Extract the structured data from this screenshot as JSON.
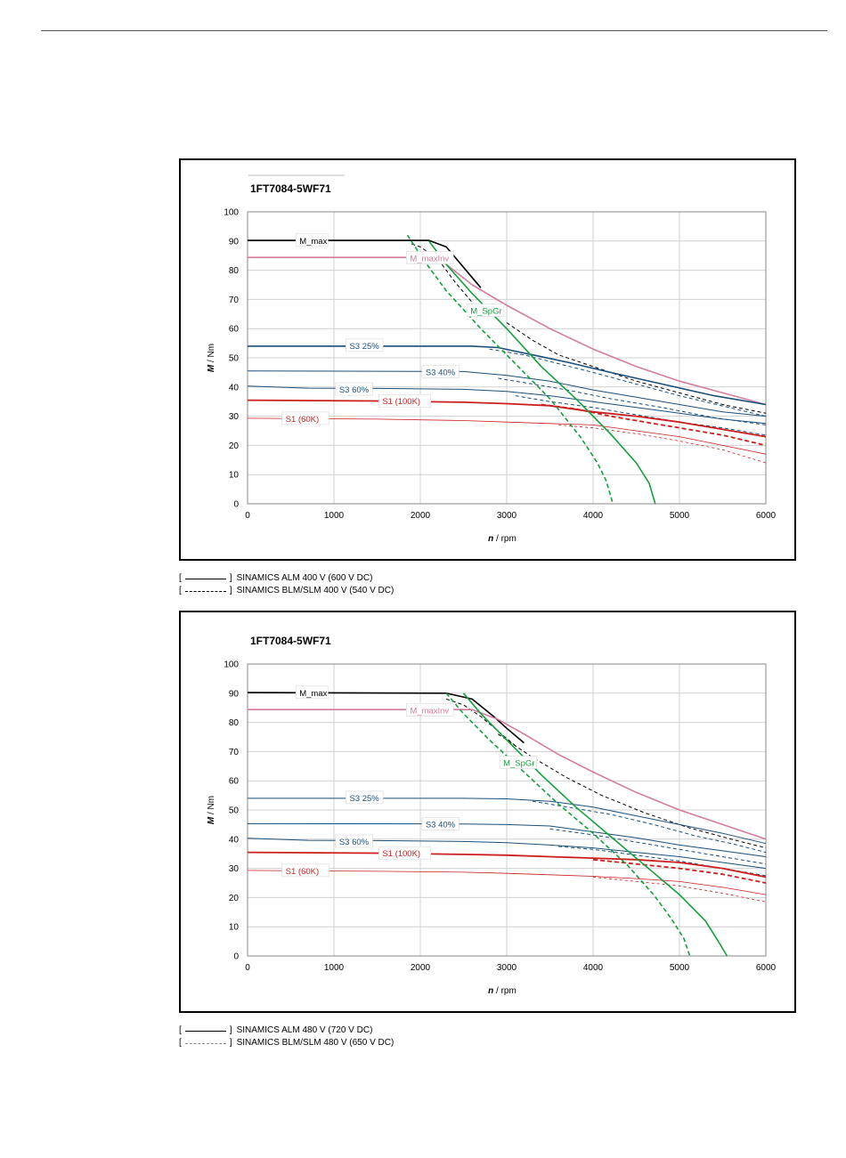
{
  "chart_data": [
    {
      "type": "line",
      "title": "1FT7084-5WF71",
      "xlabel_italic": "n",
      "xlabel_unit": " / rpm",
      "ylabel_italic": "M",
      "ylabel_unit": " / Nm",
      "xlim": [
        0,
        6000
      ],
      "ylim": [
        0,
        100
      ],
      "xticks": [
        0,
        1000,
        2000,
        3000,
        4000,
        5000,
        6000
      ],
      "yticks": [
        0,
        10,
        20,
        30,
        40,
        50,
        60,
        70,
        80,
        90,
        100
      ],
      "grid": true,
      "series": [
        {
          "name": "M_max",
          "color": "#000000",
          "width": 1.6,
          "dash": "",
          "label_at": [
            600,
            90
          ],
          "x": [
            0,
            2100,
            2300,
            2500,
            2700
          ],
          "y": [
            90.2,
            90.2,
            88,
            81,
            74
          ]
        },
        {
          "color": "#000000",
          "width": 1.0,
          "dash": "4,3",
          "x": [
            1900,
            2000,
            2200,
            2400,
            2600
          ],
          "y": [
            89,
            88,
            84,
            76,
            69
          ]
        },
        {
          "name": "M_maxInv",
          "color": "#d47c9e",
          "width": 1.6,
          "dash": "",
          "label_at": [
            1880,
            84
          ],
          "x": [
            0,
            2100,
            2300,
            2600,
            3000,
            3500,
            4000,
            4500,
            5000,
            5500,
            6000
          ],
          "y": [
            84.4,
            84.4,
            82,
            75,
            68,
            60,
            53,
            47,
            42,
            38,
            34
          ]
        },
        {
          "color": "#000000",
          "width": 1.0,
          "dash": "4,3",
          "x": [
            3000,
            3300,
            3600,
            4000,
            4500,
            5000,
            5500,
            6000
          ],
          "y": [
            62,
            56,
            51,
            47,
            42,
            38,
            34,
            31
          ]
        },
        {
          "name": "S3 25%",
          "color": "#1a4f7a",
          "width": 1.6,
          "dash": "",
          "label_at": [
            1180,
            54
          ],
          "x": [
            0,
            2600,
            2900,
            3300,
            3700,
            4200,
            4800,
            5400,
            6000
          ],
          "y": [
            54,
            54,
            53.5,
            51,
            48.5,
            45,
            41,
            37,
            34
          ]
        },
        {
          "color": "#1a4f7a",
          "width": 1.0,
          "dash": "4,3",
          "x": [
            2800,
            3200,
            3600,
            4000,
            4500,
            5000,
            5500,
            6000
          ],
          "y": [
            53,
            51,
            48,
            45,
            41,
            37,
            33.5,
            30
          ]
        },
        {
          "name": "S3 40%",
          "color": "#1a4f7a",
          "width": 1.0,
          "dash": "",
          "label_at": [
            2060,
            45
          ],
          "x": [
            0,
            2500,
            3000,
            3500,
            4000,
            4500,
            5000,
            5500,
            6000
          ],
          "y": [
            45.5,
            45.3,
            44,
            42,
            39,
            36.5,
            34,
            31.5,
            30
          ]
        },
        {
          "color": "#1a4f7a",
          "width": 1.0,
          "dash": "4,3",
          "x": [
            2900,
            3300,
            3700,
            4200,
            4800,
            5400,
            6000
          ],
          "y": [
            43,
            41,
            39,
            36,
            33,
            29.5,
            27
          ]
        },
        {
          "name": "S3 60%",
          "color": "#1a4f7a",
          "width": 1.0,
          "dash": "",
          "label_at": [
            1060,
            39
          ],
          "x": [
            0,
            700,
            1500,
            2500,
            3000,
            3500,
            4000,
            4500,
            5000,
            5500,
            6000
          ],
          "y": [
            40.3,
            39.6,
            39.5,
            39.2,
            38.5,
            37,
            35,
            33,
            31,
            29,
            27.5
          ]
        },
        {
          "color": "#1a4f7a",
          "width": 1.0,
          "dash": "4,3",
          "x": [
            3100,
            3500,
            4000,
            4500,
            5000,
            5500,
            6000
          ],
          "y": [
            37,
            35,
            33,
            30.5,
            28,
            26,
            23.5
          ]
        },
        {
          "name": "S1 (100K)",
          "color": "#cc1e1e",
          "width": 1.8,
          "dash": "",
          "label_at": [
            1560,
            35
          ],
          "x": [
            0,
            1500,
            2500,
            3000,
            3500,
            4000,
            4500,
            5000,
            5500,
            6000
          ],
          "y": [
            35.5,
            35.2,
            34.8,
            34.3,
            33.6,
            31.5,
            30,
            28,
            25.5,
            23
          ]
        },
        {
          "color": "#cc1e1e",
          "width": 1.8,
          "dash": "5,3",
          "x": [
            3400,
            3800,
            4200,
            4600,
            5000,
            5500,
            6000
          ],
          "y": [
            34,
            32.5,
            30,
            28,
            26,
            23.5,
            20
          ]
        },
        {
          "name": "S1 (60K)",
          "color": "#cc1e1e",
          "width": 0.8,
          "dash": "",
          "label_at": [
            440,
            29
          ],
          "x": [
            0,
            1500,
            2500,
            3000,
            3500,
            4000,
            4500,
            5000,
            5500,
            6000
          ],
          "y": [
            29.3,
            29,
            28.5,
            28,
            27.5,
            27,
            25,
            23,
            20,
            17
          ]
        },
        {
          "color": "#cc1e1e",
          "width": 0.8,
          "dash": "3,3",
          "x": [
            3600,
            4000,
            4500,
            5000,
            5500,
            6000
          ],
          "y": [
            27,
            26,
            24,
            21.5,
            18.5,
            14
          ]
        },
        {
          "name": "M_SpGr",
          "color": "#14a03c",
          "width": 1.6,
          "dash": "",
          "label_at": [
            2580,
            66
          ],
          "x": [
            2100,
            2300,
            2600,
            3000,
            3400,
            3800,
            4200,
            4500,
            4650,
            4720
          ],
          "y": [
            90,
            82,
            72,
            60,
            47,
            36,
            24,
            14,
            7,
            0
          ]
        },
        {
          "color": "#14a03c",
          "width": 1.6,
          "dash": "5,3",
          "x": [
            1850,
            2050,
            2300,
            2700,
            3100,
            3500,
            3850,
            4050,
            4150,
            4230
          ],
          "y": [
            92,
            83,
            73,
            60,
            48,
            36,
            23,
            14,
            8,
            0
          ]
        }
      ]
    },
    {
      "type": "line",
      "title": "1FT7084-5WF71",
      "xlabel_italic": "n",
      "xlabel_unit": " / rpm",
      "ylabel_italic": "M",
      "ylabel_unit": " / Nm",
      "xlim": [
        0,
        6000
      ],
      "ylim": [
        0,
        100
      ],
      "xticks": [
        0,
        1000,
        2000,
        3000,
        4000,
        5000,
        6000
      ],
      "yticks": [
        0,
        10,
        20,
        30,
        40,
        50,
        60,
        70,
        80,
        90,
        100
      ],
      "grid": true,
      "series": [
        {
          "name": "M_max",
          "color": "#000000",
          "width": 1.6,
          "dash": "",
          "label_at": [
            600,
            90
          ],
          "x": [
            0,
            2300,
            2600,
            2850,
            3000,
            3200
          ],
          "y": [
            90.2,
            90,
            88,
            82,
            78,
            73
          ]
        },
        {
          "color": "#000000",
          "width": 1.0,
          "dash": "4,3",
          "x": [
            2300,
            2500,
            2700,
            2900,
            3100
          ],
          "y": [
            88,
            86,
            82,
            77,
            72
          ]
        },
        {
          "name": "M_maxInv",
          "color": "#d47c9e",
          "width": 1.6,
          "dash": "",
          "label_at": [
            1880,
            84
          ],
          "x": [
            0,
            2600,
            2900,
            3200,
            3600,
            4000,
            4500,
            5000,
            5500,
            6000
          ],
          "y": [
            84.4,
            84.4,
            81,
            76,
            69,
            63,
            56,
            50,
            45,
            40
          ]
        },
        {
          "color": "#000000",
          "width": 1.0,
          "dash": "4,3",
          "x": [
            2900,
            3300,
            3700,
            4100,
            4600,
            5100,
            5600,
            6000
          ],
          "y": [
            76,
            68,
            61,
            55,
            49,
            44,
            40,
            37
          ]
        },
        {
          "name": "S3 25%",
          "color": "#1a4f7a",
          "width": 1.0,
          "dash": "",
          "label_at": [
            1180,
            54
          ],
          "x": [
            0,
            2500,
            3000,
            3500,
            4000,
            4500,
            5000,
            5500,
            6000
          ],
          "y": [
            54,
            54,
            53.8,
            53,
            51,
            48,
            45,
            42,
            38.5
          ]
        },
        {
          "color": "#1a4f7a",
          "width": 1.0,
          "dash": "4,3",
          "x": [
            3300,
            3700,
            4200,
            4700,
            5200,
            5600,
            6000
          ],
          "y": [
            53,
            51,
            48.5,
            45,
            41,
            38.5,
            35.5
          ]
        },
        {
          "name": "S3 40%",
          "color": "#1a4f7a",
          "width": 1.0,
          "dash": "",
          "label_at": [
            2060,
            45
          ],
          "x": [
            0,
            2500,
            3000,
            3500,
            4000,
            4500,
            5000,
            5500,
            6000
          ],
          "y": [
            45.3,
            45.2,
            45,
            44.5,
            42.5,
            40.5,
            38,
            36,
            34
          ]
        },
        {
          "color": "#1a4f7a",
          "width": 1.0,
          "dash": "4,3",
          "x": [
            3500,
            4000,
            4500,
            5000,
            5500,
            6000
          ],
          "y": [
            43.5,
            41.5,
            39,
            36.5,
            34,
            31.5
          ]
        },
        {
          "name": "S3 60%",
          "color": "#1a4f7a",
          "width": 1.0,
          "dash": "",
          "label_at": [
            1060,
            39
          ],
          "x": [
            0,
            700,
            1500,
            2500,
            3000,
            3500,
            4000,
            4500,
            5000,
            5500,
            6000
          ],
          "y": [
            40.3,
            39.6,
            39.5,
            39.2,
            38.8,
            38,
            37,
            35.5,
            34,
            32,
            30
          ]
        },
        {
          "color": "#1a4f7a",
          "width": 1.0,
          "dash": "4,3",
          "x": [
            3600,
            4000,
            4500,
            5000,
            5500,
            6000
          ],
          "y": [
            37.5,
            36.5,
            34.5,
            32.5,
            30,
            27.5
          ]
        },
        {
          "name": "S1 (100K)",
          "color": "#cc1e1e",
          "width": 1.8,
          "dash": "",
          "label_at": [
            1560,
            35
          ],
          "x": [
            0,
            1500,
            2500,
            3000,
            3500,
            4000,
            4500,
            5000,
            5500,
            6000
          ],
          "y": [
            35.5,
            35.2,
            34.8,
            34.5,
            34,
            33.5,
            33,
            32,
            30,
            27
          ]
        },
        {
          "color": "#cc1e1e",
          "width": 1.8,
          "dash": "5,3",
          "x": [
            4000,
            4500,
            5000,
            5500,
            6000
          ],
          "y": [
            33,
            31.5,
            30,
            28,
            25
          ]
        },
        {
          "name": "S1 (60K)",
          "color": "#cc1e1e",
          "width": 0.8,
          "dash": "",
          "label_at": [
            440,
            29
          ],
          "x": [
            0,
            1500,
            2500,
            3000,
            3500,
            4000,
            4500,
            5000,
            5500,
            6000
          ],
          "y": [
            29.3,
            29,
            28.7,
            28.3,
            27.8,
            27.3,
            26.5,
            25.5,
            23.5,
            21
          ]
        },
        {
          "color": "#cc1e1e",
          "width": 0.8,
          "dash": "3,3",
          "x": [
            4000,
            4500,
            5000,
            5500,
            6000
          ],
          "y": [
            27,
            25.5,
            24,
            21.5,
            18.5
          ]
        },
        {
          "name": "M_SpGr",
          "color": "#14a03c",
          "width": 1.6,
          "dash": "",
          "label_at": [
            2960,
            66
          ],
          "x": [
            2500,
            2700,
            3000,
            3400,
            3800,
            4200,
            4600,
            5000,
            5300,
            5450,
            5550
          ],
          "y": [
            90,
            83,
            74,
            62,
            51,
            41,
            31,
            21,
            12,
            5,
            0
          ]
        },
        {
          "color": "#14a03c",
          "width": 1.6,
          "dash": "5,3",
          "x": [
            2300,
            2500,
            2800,
            3200,
            3600,
            4000,
            4400,
            4700,
            4900,
            5050,
            5120
          ],
          "y": [
            90,
            83,
            74,
            63,
            52,
            42,
            31,
            21,
            13,
            6,
            0
          ]
        }
      ]
    }
  ],
  "legend1": {
    "row1": "SINAMICS ALM 400 V (600 V DC)",
    "row2": "SINAMICS BLM/SLM 400 V (540 V DC)"
  },
  "legend2": {
    "row1": "SINAMICS ALM 480 V (720 V DC)",
    "row2": "SINAMICS BLM/SLM 480 V (650 V DC)"
  },
  "bracket_open": "[",
  "bracket_close": "]"
}
